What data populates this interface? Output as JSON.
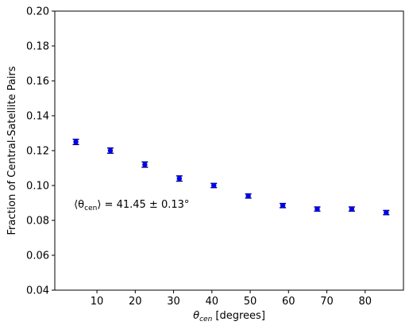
{
  "chart_data": {
    "type": "scatter",
    "x": [
      4.5,
      13.5,
      22.5,
      31.5,
      40.5,
      49.5,
      58.5,
      67.5,
      76.5,
      85.5
    ],
    "y": [
      0.125,
      0.12,
      0.112,
      0.104,
      0.1,
      0.094,
      0.0885,
      0.0865,
      0.0865,
      0.0845
    ],
    "yerr": [
      0.0015,
      0.0015,
      0.0015,
      0.0015,
      0.0012,
      0.0012,
      0.0012,
      0.0012,
      0.0012,
      0.0012
    ],
    "title": "",
    "xlabel": "θ_cen [degrees]",
    "xlabel_main": "θ",
    "xlabel_sub": "cen",
    "xlabel_rest": " [degrees]",
    "ylabel": "Fraction of Central-Satellite Pairs",
    "xlim": [
      -1,
      90
    ],
    "ylim": [
      0.04,
      0.2
    ],
    "xticks": [
      10,
      20,
      30,
      40,
      50,
      60,
      70,
      80
    ],
    "yticks": [
      0.04,
      0.06,
      0.08,
      0.1,
      0.12,
      0.14,
      0.16,
      0.18,
      0.2
    ],
    "xtick_labels": [
      "10",
      "20",
      "30",
      "40",
      "50",
      "60",
      "70",
      "80"
    ],
    "ytick_labels": [
      "0.04",
      "0.06",
      "0.08",
      "0.10",
      "0.12",
      "0.14",
      "0.16",
      "0.18",
      "0.20"
    ],
    "annotation": {
      "open": "⟨θ",
      "sub": "cen",
      "close": "⟩ = 41.45 ± 0.13°",
      "x": 4.0,
      "y": 0.089
    },
    "grid": false,
    "marker_color": "#0000ee",
    "errbar_color": "#000080"
  }
}
